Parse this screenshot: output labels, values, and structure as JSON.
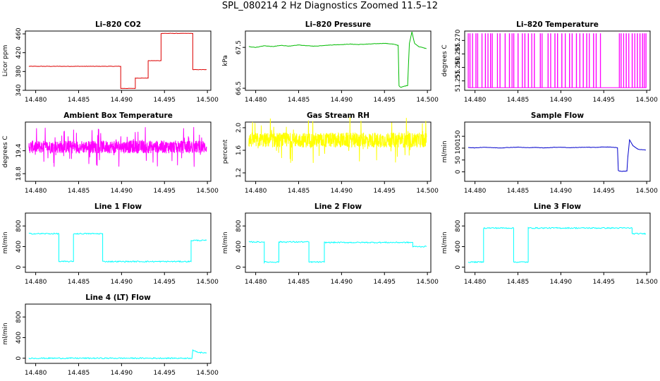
{
  "figure_title": "SPL_080214  2 Hz Diagnostics Zoomed 11.5–12",
  "chart_data": [
    {
      "type": "line",
      "title": "Li–820 CO2",
      "ylabel": "Licor ppm",
      "xlim": [
        14.4788,
        14.5004
      ],
      "ylim": [
        340,
        466
      ],
      "xticks": [
        "14.480",
        "14.485",
        "14.490",
        "14.495",
        "14.500"
      ],
      "yticks": [
        "340",
        "380",
        "420",
        "460"
      ],
      "color": "#dd0000",
      "series": [
        {
          "x": [
            14.4792,
            14.4899,
            14.4899,
            14.4916,
            14.4916,
            14.4931,
            14.4931,
            14.4946,
            14.4946,
            14.4983,
            14.4983,
            14.4999
          ],
          "y": [
            391,
            391,
            344,
            344,
            366,
            366,
            403,
            403,
            461,
            461,
            384,
            384
          ]
        }
      ]
    },
    {
      "type": "line",
      "title": "Li–820 Pressure",
      "ylabel": "kPa",
      "xlim": [
        14.4788,
        14.5004
      ],
      "ylim": [
        66.45,
        67.9
      ],
      "xticks": [
        "14.480",
        "14.485",
        "14.490",
        "14.495",
        "14.500"
      ],
      "yticks": [
        "66.5",
        "67.5"
      ],
      "color": "#00bb00",
      "series": [
        {
          "x": [
            14.4792,
            14.48,
            14.481,
            14.482,
            14.483,
            14.484,
            14.485,
            14.486,
            14.487,
            14.488,
            14.489,
            14.49,
            14.491,
            14.492,
            14.493,
            14.494,
            14.495,
            14.496,
            14.4966,
            14.4967,
            14.4969,
            14.4973,
            14.4977,
            14.4979,
            14.4982,
            14.4985,
            14.499,
            14.4999
          ],
          "y": [
            67.52,
            67.5,
            67.54,
            67.52,
            67.55,
            67.53,
            67.56,
            67.54,
            67.53,
            67.55,
            67.56,
            67.57,
            67.58,
            67.57,
            67.58,
            67.59,
            67.6,
            67.58,
            67.55,
            66.56,
            66.52,
            66.55,
            66.57,
            67.6,
            67.88,
            67.6,
            67.52,
            67.47
          ]
        }
      ]
    },
    {
      "type": "line",
      "title": "Li–820 Temperature",
      "ylabel": "degrees C",
      "xlim": [
        14.4788,
        14.5004
      ],
      "ylim": [
        51.2515,
        51.2735
      ],
      "xticks": [
        "14.480",
        "14.485",
        "14.490",
        "14.495",
        "14.500"
      ],
      "yticks": [
        "51.255",
        "51.260",
        "51.265",
        "51.270"
      ],
      "color": "#ff00ff",
      "series": [
        {
          "note_levels": [
            51.2525,
            51.2725
          ],
          "high_x": [
            14.4792,
            14.4794,
            14.4797,
            14.4801,
            14.4803,
            14.4808,
            14.4812,
            14.4815,
            14.4818,
            14.482,
            14.4826,
            14.4829,
            14.4835,
            14.484,
            14.4843,
            14.4845,
            14.485,
            14.4855,
            14.4858,
            14.4862,
            14.4866,
            14.4869,
            14.4876,
            14.4878,
            14.4885,
            14.4888,
            14.4893,
            14.4896,
            14.4901,
            14.4905,
            14.491,
            14.4913,
            14.4918,
            14.4922,
            14.4926,
            14.493,
            14.4933,
            14.4938,
            14.4941,
            14.4946,
            14.4968,
            14.497,
            14.4973,
            14.4976,
            14.4979,
            14.4983,
            14.4986,
            14.4989,
            14.4992,
            14.4995,
            14.4997,
            14.4999
          ]
        }
      ]
    },
    {
      "type": "line",
      "title": "Ambient Box Temperature",
      "ylabel": "degrees C",
      "xlim": [
        14.4788,
        14.5004
      ],
      "ylim": [
        18.6,
        20.15
      ],
      "xticks": [
        "14.480",
        "14.485",
        "14.490",
        "14.495",
        "14.500"
      ],
      "yticks": [
        "18.8",
        "19.4"
      ],
      "color": "#ff00ff",
      "series": [
        {
          "noise_center": 19.5,
          "noise_amp": 0.28,
          "x_start": 14.4792,
          "x_end": 14.4999
        }
      ]
    },
    {
      "type": "line",
      "title": "Gas Stream RH",
      "ylabel": "percent",
      "xlim": [
        14.4788,
        14.5004
      ],
      "ylim": [
        1.05,
        2.1
      ],
      "xticks": [
        "14.480",
        "14.485",
        "14.490",
        "14.495",
        "14.500"
      ],
      "yticks": [
        "1.2",
        "1.6",
        "2.0"
      ],
      "color": "#ffff00",
      "series": [
        {
          "noise_center": 1.78,
          "noise_amp": 0.22,
          "x_start": 14.4792,
          "x_end": 14.4999
        }
      ]
    },
    {
      "type": "line",
      "title": "Sample Flow",
      "ylabel": "ml/min",
      "xlim": [
        14.4788,
        14.5004
      ],
      "ylim": [
        -40,
        210
      ],
      "xticks": [
        "14.480",
        "14.485",
        "14.490",
        "14.495",
        "14.500"
      ],
      "yticks": [
        "0",
        "50",
        "100",
        "150"
      ],
      "color": "#0000cc",
      "series": [
        {
          "x": [
            14.4792,
            14.48,
            14.481,
            14.482,
            14.483,
            14.484,
            14.485,
            14.486,
            14.487,
            14.488,
            14.489,
            14.49,
            14.491,
            14.492,
            14.493,
            14.494,
            14.495,
            14.496,
            14.4966,
            14.4967,
            14.497,
            14.4975,
            14.4977,
            14.4978,
            14.498,
            14.4984,
            14.499,
            14.4999
          ],
          "y": [
            103,
            101,
            104,
            102,
            101,
            103,
            104,
            102,
            103,
            101,
            103,
            104,
            102,
            103,
            104,
            103,
            105,
            104,
            102,
            5,
            2,
            3,
            4,
            60,
            135,
            110,
            95,
            92
          ]
        }
      ]
    },
    {
      "type": "line",
      "title": "Line 1 Flow",
      "ylabel": "ml/min",
      "xlim": [
        14.4788,
        14.5004
      ],
      "ylim": [
        -100,
        1050
      ],
      "xticks": [
        "14.480",
        "14.485",
        "14.490",
        "14.495",
        "14.500"
      ],
      "yticks": [
        "0",
        "400",
        "800"
      ],
      "color": "#00ffff",
      "series": [
        {
          "x": [
            14.4792,
            14.4827,
            14.4827,
            14.4844,
            14.4844,
            14.4878,
            14.4878,
            14.4981,
            14.4981,
            14.4999
          ],
          "y": [
            650,
            650,
            110,
            110,
            650,
            650,
            110,
            110,
            520,
            520
          ]
        }
      ]
    },
    {
      "type": "line",
      "title": "Line 2 Flow",
      "ylabel": "ml/min",
      "xlim": [
        14.4788,
        14.5004
      ],
      "ylim": [
        -100,
        1050
      ],
      "xticks": [
        "14.480",
        "14.485",
        "14.490",
        "14.495",
        "14.500"
      ],
      "yticks": [
        "0",
        "400",
        "800"
      ],
      "color": "#00ffff",
      "series": [
        {
          "x": [
            14.4792,
            14.481,
            14.481,
            14.4827,
            14.4827,
            14.4862,
            14.4862,
            14.488,
            14.488,
            14.4983,
            14.4983,
            14.4999
          ],
          "y": [
            490,
            490,
            100,
            100,
            490,
            490,
            100,
            100,
            480,
            480,
            400,
            400
          ]
        }
      ]
    },
    {
      "type": "line",
      "title": "Line 3 Flow",
      "ylabel": "ml/min",
      "xlim": [
        14.4788,
        14.5004
      ],
      "ylim": [
        -100,
        1050
      ],
      "xticks": [
        "14.480",
        "14.485",
        "14.490",
        "14.495",
        "14.500"
      ],
      "yticks": [
        "0",
        "400",
        "800"
      ],
      "color": "#00ffff",
      "series": [
        {
          "x": [
            14.4792,
            14.481,
            14.481,
            14.4845,
            14.4845,
            14.4862,
            14.4862,
            14.4983,
            14.4983,
            14.4999
          ],
          "y": [
            100,
            100,
            760,
            760,
            100,
            100,
            760,
            760,
            650,
            650
          ]
        }
      ]
    },
    {
      "type": "line",
      "title": "Line 4 (LT) Flow",
      "ylabel": "ml/min",
      "xlim": [
        14.4788,
        14.5004
      ],
      "ylim": [
        -100,
        1050
      ],
      "xticks": [
        "14.480",
        "14.485",
        "14.490",
        "14.495",
        "14.500"
      ],
      "yticks": [
        "0",
        "400",
        "800"
      ],
      "color": "#00ffff",
      "series": [
        {
          "x": [
            14.4792,
            14.4982,
            14.4983,
            14.4987,
            14.4992,
            14.4999
          ],
          "y": [
            0,
            0,
            160,
            120,
            110,
            110
          ]
        }
      ]
    }
  ]
}
